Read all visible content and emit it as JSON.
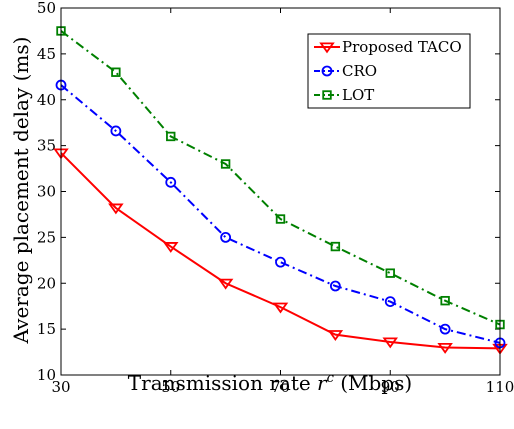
{
  "chart_data": {
    "type": "line",
    "xlabel": "Transmission rate",
    "xlabel_symbol": "r",
    "xlabel_superscript": "c",
    "xlabel_unit": "(Mbps)",
    "ylabel": "Average placement delay (ms)",
    "xlim": [
      30,
      110
    ],
    "ylim": [
      10,
      50
    ],
    "xticks": [
      30,
      50,
      70,
      90,
      110
    ],
    "yticks": [
      10,
      15,
      20,
      25,
      30,
      35,
      40,
      45,
      50
    ],
    "grid": false,
    "legend_position": "top-right",
    "x": [
      30,
      40,
      50,
      60,
      70,
      80,
      90,
      100,
      110
    ],
    "series": [
      {
        "name": "Proposed TACO",
        "color": "#ff0000",
        "marker": "triangle-down",
        "linestyle": "solid",
        "values": [
          34.2,
          28.2,
          24.0,
          20.0,
          17.4,
          14.4,
          13.6,
          13.0,
          12.9
        ]
      },
      {
        "name": "CRO",
        "color": "#0000ff",
        "marker": "circle",
        "linestyle": "dashdot",
        "values": [
          41.6,
          36.6,
          31.0,
          25.0,
          22.3,
          19.7,
          18.0,
          15.0,
          13.5
        ]
      },
      {
        "name": "LOT",
        "color": "#008000",
        "marker": "square",
        "linestyle": "dashdot",
        "values": [
          47.5,
          43.0,
          36.0,
          33.0,
          27.0,
          24.0,
          21.1,
          18.1,
          15.5
        ]
      }
    ]
  }
}
